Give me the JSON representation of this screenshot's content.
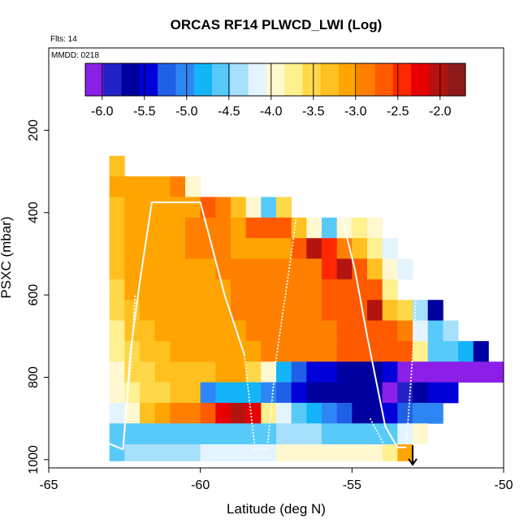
{
  "chart_data": {
    "type": "heatmap",
    "title": "ORCAS RF14 PLWCD_LWI (Log)",
    "flights_label": "Flts: 14",
    "date_label": "MMDD: 0218",
    "xlabel": "Latitude (deg N)",
    "ylabel": "PSXC (mbar)",
    "xlim": [
      -65,
      -50
    ],
    "ylim": [
      1020,
      0
    ],
    "x_ticks": [
      -65,
      -60,
      -55,
      -50
    ],
    "x_tick_labels": [
      "-65",
      "-60",
      "-55",
      "-50"
    ],
    "y_ticks": [
      200,
      400,
      600,
      800,
      1000
    ],
    "y_tick_labels": [
      "200",
      "400",
      "600",
      "800",
      "1000"
    ],
    "colorbar": {
      "range": [
        -6.2,
        -1.7
      ],
      "ticks": [
        -6.0,
        -5.5,
        -5.0,
        -4.5,
        -4.0,
        -3.5,
        -3.0,
        -2.5,
        -2.0
      ],
      "tick_labels": [
        "-6.0",
        "-5.5",
        "-5.0",
        "-4.5",
        "-4.0",
        "-3.5",
        "-3.0",
        "-2.5",
        "-2.0"
      ],
      "colors": [
        "#8b1fe8",
        "#2222c8",
        "#0000a0",
        "#0000d8",
        "#2060e8",
        "#2e86f4",
        "#14b4f8",
        "#58cafa",
        "#a6e0fc",
        "#e4f4ff",
        "#fff8d0",
        "#fff090",
        "#ffd84a",
        "#ffc020",
        "#ffa400",
        "#ff8000",
        "#ff5a00",
        "#ff2800",
        "#e60000",
        "#b41410",
        "#8c1a1a"
      ]
    },
    "x_bin_width": 0.5,
    "y_bin_height": 50,
    "rows": [
      {
        "p": 287,
        "h": 50,
        "x": [
          -62.75
        ],
        "v": [
          -3.3
        ]
      },
      {
        "p": 337,
        "h": 50,
        "x": [
          -62.75,
          -62.25,
          -61.75,
          -61.25,
          -60.75,
          -60.25
        ],
        "v": [
          -3.2,
          -3.1,
          -3.1,
          -3.0,
          -2.8,
          -3.9
        ]
      },
      {
        "p": 387,
        "h": 50,
        "x": [
          -62.75,
          -62.25,
          -61.75,
          -61.25,
          -60.75,
          -60.25,
          -59.75,
          -59.25,
          -58.75,
          -58.25,
          -57.75,
          -57.25
        ],
        "v": [
          -3.3,
          -3.2,
          -3.1,
          -3.0,
          -3.0,
          -3.0,
          -2.7,
          -2.8,
          -3.3,
          -3.9,
          -4.6,
          -3.5
        ]
      },
      {
        "p": 437,
        "h": 50,
        "x": [
          -62.75,
          -62.25,
          -61.75,
          -61.25,
          -60.75,
          -60.25,
          -59.75,
          -59.25,
          -58.75,
          -58.25,
          -57.75,
          -57.25,
          -56.75,
          -56.25,
          -55.75,
          -55.25,
          -54.75,
          -54.25
        ],
        "v": [
          -3.3,
          -3.2,
          -3.1,
          -3.0,
          -3.0,
          -2.9,
          -2.9,
          -2.8,
          -3.0,
          -2.7,
          -2.6,
          -2.7,
          -3.4,
          -4.0,
          -4.5,
          -4.0,
          -3.7,
          -4.0
        ]
      },
      {
        "p": 487,
        "h": 50,
        "x": [
          -62.75,
          -62.25,
          -61.75,
          -61.25,
          -60.75,
          -60.25,
          -59.75,
          -59.25,
          -58.75,
          -58.25,
          -57.75,
          -57.25,
          -56.75,
          -56.25,
          -55.75,
          -55.25,
          -54.75,
          -54.25,
          -53.75
        ],
        "v": [
          -3.4,
          -3.2,
          -3.1,
          -3.0,
          -3.0,
          -2.9,
          -2.9,
          -2.9,
          -3.0,
          -3.0,
          -3.0,
          -3.1,
          -2.6,
          -2.1,
          -2.4,
          -2.9,
          -3.4,
          -3.8,
          -4.1
        ]
      },
      {
        "p": 537,
        "h": 50,
        "x": [
          -62.75,
          -62.25,
          -61.75,
          -61.25,
          -60.75,
          -60.25,
          -59.75,
          -59.25,
          -58.75,
          -58.25,
          -57.75,
          -57.25,
          -56.75,
          -56.25,
          -55.75,
          -55.25,
          -54.75,
          -54.25,
          -53.75,
          -53.25
        ],
        "v": [
          -3.4,
          -3.2,
          -3.1,
          -3.1,
          -3.0,
          -3.0,
          -3.0,
          -2.9,
          -2.9,
          -2.9,
          -2.9,
          -2.8,
          -2.9,
          -2.8,
          -2.4,
          -2.0,
          -2.6,
          -3.3,
          -3.9,
          -4.2
        ]
      },
      {
        "p": 587,
        "h": 50,
        "x": [
          -62.75,
          -62.25,
          -61.75,
          -61.25,
          -60.75,
          -60.25,
          -59.75,
          -59.25,
          -58.75,
          -58.25,
          -57.75,
          -57.25,
          -56.75,
          -56.25,
          -55.75,
          -55.25,
          -54.75,
          -54.25,
          -53.75
        ],
        "v": [
          -3.5,
          -3.2,
          -3.1,
          -3.1,
          -3.0,
          -3.0,
          -3.0,
          -3.0,
          -2.9,
          -2.9,
          -2.8,
          -2.8,
          -2.8,
          -2.8,
          -2.7,
          -2.6,
          -2.6,
          -2.7,
          -3.7
        ]
      },
      {
        "p": 637,
        "h": 50,
        "x": [
          -62.75,
          -62.25,
          -61.75,
          -61.25,
          -60.75,
          -60.25,
          -59.75,
          -59.25,
          -58.75,
          -58.25,
          -57.75,
          -57.25,
          -56.75,
          -56.25,
          -55.75,
          -55.25,
          -54.75,
          -54.25,
          -53.75,
          -53.25,
          -52.75,
          -52.25
        ],
        "v": [
          -3.6,
          -3.3,
          -3.2,
          -3.1,
          -3.1,
          -3.0,
          -3.0,
          -3.0,
          -2.9,
          -2.9,
          -2.9,
          -2.8,
          -2.8,
          -2.8,
          -2.7,
          -2.7,
          -2.6,
          -2.0,
          -3.3,
          -3.5,
          -4.3,
          -5.7
        ]
      },
      {
        "p": 687,
        "h": 50,
        "x": [
          -62.75,
          -62.25,
          -61.75,
          -61.25,
          -60.75,
          -60.25,
          -59.75,
          -59.25,
          -58.75,
          -58.25,
          -57.75,
          -57.25,
          -56.75,
          -56.25,
          -55.75,
          -55.25,
          -54.75,
          -54.25,
          -53.75,
          -53.25,
          -52.75,
          -52.25,
          -51.75
        ],
        "v": [
          -3.7,
          -3.4,
          -3.3,
          -3.2,
          -3.1,
          -3.1,
          -3.0,
          -3.0,
          -3.0,
          -2.9,
          -2.9,
          -2.9,
          -2.8,
          -2.8,
          -2.8,
          -2.7,
          -2.7,
          -2.6,
          -2.7,
          -2.9,
          -4.2,
          -4.6,
          -4.4
        ]
      },
      {
        "p": 737,
        "h": 50,
        "x": [
          -62.75,
          -62.25,
          -61.75,
          -61.25,
          -60.75,
          -60.25,
          -59.75,
          -59.25,
          -58.75,
          -58.25,
          -57.75,
          -57.25,
          -56.75,
          -56.25,
          -55.75,
          -55.25,
          -54.75,
          -54.25,
          -53.75,
          -53.25,
          -52.75,
          -52.25,
          -51.75,
          -51.25,
          -50.75
        ],
        "v": [
          -3.8,
          -3.5,
          -3.4,
          -3.3,
          -3.2,
          -3.1,
          -3.1,
          -3.0,
          -3.0,
          -3.0,
          -2.9,
          -2.9,
          -2.9,
          -2.8,
          -2.8,
          -2.7,
          -2.7,
          -2.7,
          -2.7,
          -2.6,
          -3.8,
          -4.5,
          -4.6,
          -4.8,
          -5.6
        ]
      },
      {
        "p": 787,
        "h": 50,
        "x": [
          -62.75,
          -62.25,
          -61.75,
          -61.25,
          -60.75,
          -60.25,
          -59.75,
          -59.25,
          -58.75,
          -58.25,
          -57.75,
          -57.25,
          -56.75,
          -56.25,
          -55.75,
          -55.25,
          -54.75,
          -54.25,
          -53.75,
          -53.25,
          -52.75,
          -52.25,
          -51.75,
          -51.25,
          -50.75,
          -50.25
        ],
        "v": [
          -3.9,
          -3.6,
          -3.5,
          -3.4,
          -3.4,
          -3.3,
          -3.3,
          -3.2,
          -3.1,
          -3.5,
          -4.0,
          -4.9,
          -5.2,
          -5.4,
          -5.5,
          -5.6,
          -5.6,
          -5.6,
          -5.4,
          -6.0,
          -6.0,
          -6.0,
          -6.0,
          -6.0,
          -6.0,
          -6.0
        ]
      },
      {
        "p": 837,
        "h": 50,
        "x": [
          -62.75,
          -62.25,
          -61.75,
          -61.25,
          -60.75,
          -60.25,
          -59.75,
          -59.25,
          -58.75,
          -58.25,
          -57.75,
          -57.25,
          -56.75,
          -56.25,
          -55.75,
          -55.25,
          -54.75,
          -54.25,
          -53.75,
          -53.25,
          -52.75,
          -52.25,
          -51.75
        ],
        "v": [
          -4.0,
          -3.8,
          -3.6,
          -3.5,
          -3.4,
          -3.3,
          -5.0,
          -4.9,
          -4.9,
          -4.9,
          -5.0,
          -5.2,
          -5.5,
          -5.6,
          -5.6,
          -5.6,
          -5.6,
          -5.7,
          -6.0,
          -5.8,
          -5.6,
          -5.5,
          -5.5
        ]
      },
      {
        "p": 887,
        "h": 50,
        "x": [
          -62.75,
          -62.25,
          -61.75,
          -61.25,
          -60.75,
          -60.25,
          -59.75,
          -59.25,
          -58.75,
          -58.25,
          -57.75,
          -57.25,
          -56.75,
          -56.25,
          -55.75,
          -55.25,
          -54.75,
          -54.25,
          -53.75,
          -53.25,
          -52.75,
          -52.25
        ],
        "v": [
          -4.1,
          -3.9,
          -3.3,
          -3.1,
          -2.9,
          -2.8,
          -2.6,
          -2.3,
          -2.1,
          -2.2,
          -3.8,
          -4.2,
          -4.7,
          -4.9,
          -5.0,
          -5.3,
          -5.6,
          -5.6,
          -5.4,
          -5.2,
          -5.1,
          -5.0
        ]
      },
      {
        "p": 937,
        "h": 50,
        "x": [
          -62.75,
          -62.25,
          -61.75,
          -61.25,
          -60.75,
          -60.25,
          -59.75,
          -59.25,
          -58.75,
          -58.25,
          -57.75,
          -57.25,
          -56.75,
          -56.25,
          -55.75,
          -55.25,
          -54.75,
          -54.25,
          -53.75,
          -53.25,
          -52.75
        ],
        "v": [
          -4.6,
          -4.6,
          -4.5,
          -4.5,
          -4.5,
          -4.5,
          -4.5,
          -4.5,
          -4.5,
          -4.5,
          -4.5,
          -4.4,
          -4.4,
          -4.4,
          -4.5,
          -4.5,
          -4.5,
          -4.5,
          -4.5,
          -4.2,
          -3.9
        ]
      },
      {
        "p": 983,
        "h": 40,
        "x": [
          -62.75,
          -62.25,
          -61.75,
          -61.25,
          -60.75,
          -60.25,
          -59.75,
          -59.25,
          -58.75,
          -58.25,
          -57.75,
          -57.25,
          -56.75,
          -56.25,
          -55.75,
          -55.25,
          -54.75,
          -54.25,
          -53.75,
          -53.25
        ],
        "v": [
          -4.6,
          -4.4,
          -4.3,
          -4.3,
          -4.3,
          -4.3,
          -4.2,
          -4.2,
          -4.1,
          -4.1,
          -4.1,
          -4.0,
          -4.0,
          -4.0,
          -4.0,
          -4.0,
          -3.9,
          -3.9,
          -3.8,
          -3.2
        ]
      }
    ],
    "track_segments": [
      {
        "style": "solid",
        "points": [
          [
            -63.05,
            960
          ],
          [
            -62.55,
            975
          ],
          [
            -62.3,
            735
          ],
          [
            -62.0,
            570
          ],
          [
            -61.6,
            375
          ],
          [
            -61.0,
            375
          ],
          [
            -60.0,
            375
          ],
          [
            -59.2,
            600
          ],
          [
            -58.55,
            745
          ]
        ]
      },
      {
        "style": "dotted",
        "points": [
          [
            -62.55,
            975
          ],
          [
            -62.3,
            775
          ],
          [
            -62.15,
            600
          ]
        ]
      },
      {
        "style": "dotted",
        "points": [
          [
            -58.55,
            745
          ],
          [
            -58.2,
            975
          ],
          [
            -57.8,
            975
          ],
          [
            -57.5,
            755
          ],
          [
            -57.0,
            500
          ],
          [
            -56.7,
            330
          ]
        ]
      },
      {
        "style": "solid",
        "points": [
          [
            -55.6,
            330
          ],
          [
            -54.9,
            540
          ],
          [
            -54.5,
            700
          ],
          [
            -53.9,
            920
          ],
          [
            -53.5,
            970
          ],
          [
            -53.2,
            970
          ]
        ]
      },
      {
        "style": "dotted",
        "points": [
          [
            -53.2,
            960
          ],
          [
            -52.95,
            690
          ],
          [
            -52.8,
            460
          ]
        ]
      },
      {
        "style": "dotted",
        "points": [
          [
            -54.4,
            900
          ],
          [
            -53.9,
            970
          ]
        ]
      }
    ],
    "marker": {
      "symbol": "arrow-down",
      "x": -53.0,
      "p_from": 965,
      "p_to": 1012
    }
  }
}
